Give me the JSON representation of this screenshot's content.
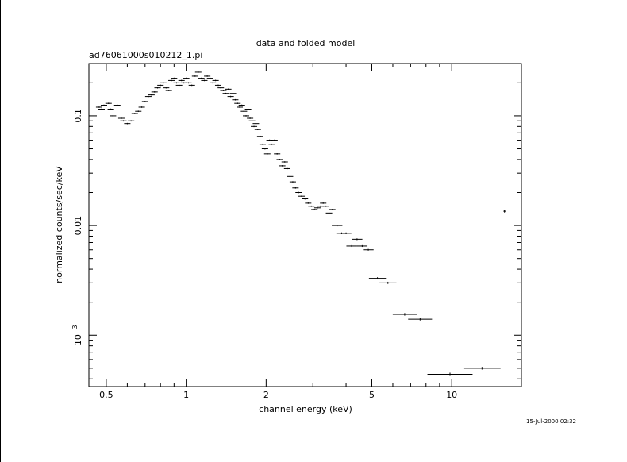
{
  "title": "data and folded model",
  "subtitle": "ad76061000s010212_1.pi",
  "timestamp": "15-Jul-2000 02:32",
  "chart_data": {
    "type": "scatter",
    "title": "data and folded model",
    "subtitle": "ad76061000s010212_1.pi",
    "xlabel": "channel energy (keV)",
    "ylabel": "normalized counts/sec/keV",
    "xscale": "log",
    "yscale": "log",
    "xlim": [
      0.43,
      18.3
    ],
    "ylim": [
      0.00034,
      0.3
    ],
    "grid": false,
    "legend": "none",
    "x_ticks": [
      {
        "value": 0.5,
        "label": "0.5"
      },
      {
        "value": 1,
        "label": "1"
      },
      {
        "value": 2,
        "label": "2"
      },
      {
        "value": 5,
        "label": "5"
      },
      {
        "value": 10,
        "label": "10"
      }
    ],
    "y_ticks": [
      {
        "value": 0.1,
        "label": "0.1"
      },
      {
        "value": 0.01,
        "label": "0.01"
      },
      {
        "value": 0.001,
        "base": "10",
        "exponent": "−3"
      }
    ],
    "points": [
      [
        0.47,
        0.12,
        0.012,
        0.006
      ],
      [
        0.48,
        0.115,
        0.012,
        0.006
      ],
      [
        0.49,
        0.125,
        0.012,
        0.006
      ],
      [
        0.51,
        0.13,
        0.012,
        0.006
      ],
      [
        0.52,
        0.115,
        0.012,
        0.006
      ],
      [
        0.53,
        0.1,
        0.012,
        0.006
      ],
      [
        0.55,
        0.125,
        0.012,
        0.006
      ],
      [
        0.57,
        0.095,
        0.012,
        0.006
      ],
      [
        0.58,
        0.09,
        0.012,
        0.006
      ],
      [
        0.6,
        0.085,
        0.012,
        0.006
      ],
      [
        0.62,
        0.09,
        0.012,
        0.006
      ],
      [
        0.64,
        0.105,
        0.012,
        0.006
      ],
      [
        0.66,
        0.11,
        0.012,
        0.006
      ],
      [
        0.68,
        0.12,
        0.012,
        0.006
      ],
      [
        0.7,
        0.135,
        0.012,
        0.006
      ],
      [
        0.72,
        0.15,
        0.012,
        0.006
      ],
      [
        0.74,
        0.155,
        0.012,
        0.006
      ],
      [
        0.76,
        0.165,
        0.012,
        0.006
      ],
      [
        0.78,
        0.18,
        0.012,
        0.006
      ],
      [
        0.8,
        0.19,
        0.012,
        0.006
      ],
      [
        0.82,
        0.2,
        0.012,
        0.006
      ],
      [
        0.84,
        0.18,
        0.012,
        0.006
      ],
      [
        0.86,
        0.17,
        0.012,
        0.006
      ],
      [
        0.88,
        0.21,
        0.012,
        0.006
      ],
      [
        0.9,
        0.22,
        0.012,
        0.006
      ],
      [
        0.92,
        0.2,
        0.012,
        0.006
      ],
      [
        0.94,
        0.19,
        0.012,
        0.006
      ],
      [
        0.96,
        0.21,
        0.012,
        0.006
      ],
      [
        0.98,
        0.2,
        0.012,
        0.006
      ],
      [
        1.0,
        0.22,
        0.012,
        0.006
      ],
      [
        1.02,
        0.2,
        0.012,
        0.006
      ],
      [
        1.05,
        0.19,
        0.012,
        0.006
      ],
      [
        1.08,
        0.23,
        0.012,
        0.006
      ],
      [
        1.11,
        0.25,
        0.012,
        0.006
      ],
      [
        1.14,
        0.22,
        0.012,
        0.006
      ],
      [
        1.17,
        0.21,
        0.012,
        0.006
      ],
      [
        1.2,
        0.23,
        0.012,
        0.006
      ],
      [
        1.23,
        0.22,
        0.012,
        0.006
      ],
      [
        1.26,
        0.2,
        0.012,
        0.006
      ],
      [
        1.29,
        0.21,
        0.012,
        0.006
      ],
      [
        1.32,
        0.19,
        0.012,
        0.006
      ],
      [
        1.35,
        0.18,
        0.012,
        0.006
      ],
      [
        1.38,
        0.17,
        0.012,
        0.006
      ],
      [
        1.41,
        0.16,
        0.012,
        0.006
      ],
      [
        1.44,
        0.175,
        0.012,
        0.006
      ],
      [
        1.47,
        0.15,
        0.012,
        0.006
      ],
      [
        1.5,
        0.16,
        0.012,
        0.006
      ],
      [
        1.53,
        0.14,
        0.012,
        0.006
      ],
      [
        1.56,
        0.13,
        0.012,
        0.006
      ],
      [
        1.59,
        0.12,
        0.012,
        0.006
      ],
      [
        1.62,
        0.125,
        0.012,
        0.006
      ],
      [
        1.65,
        0.11,
        0.012,
        0.006
      ],
      [
        1.68,
        0.1,
        0.012,
        0.006
      ],
      [
        1.71,
        0.115,
        0.012,
        0.006
      ],
      [
        1.74,
        0.095,
        0.012,
        0.006
      ],
      [
        1.77,
        0.09,
        0.012,
        0.006
      ],
      [
        1.8,
        0.08,
        0.012,
        0.006
      ],
      [
        1.83,
        0.085,
        0.012,
        0.006
      ],
      [
        1.86,
        0.075,
        0.012,
        0.006
      ],
      [
        1.9,
        0.065,
        0.012,
        0.006
      ],
      [
        1.94,
        0.055,
        0.012,
        0.006
      ],
      [
        1.98,
        0.05,
        0.012,
        0.006
      ],
      [
        2.02,
        0.045,
        0.012,
        0.006
      ],
      [
        2.06,
        0.06,
        0.012,
        0.006
      ],
      [
        2.1,
        0.055,
        0.012,
        0.006
      ],
      [
        2.15,
        0.06,
        0.012,
        0.006
      ],
      [
        2.2,
        0.045,
        0.012,
        0.006
      ],
      [
        2.25,
        0.04,
        0.012,
        0.006
      ],
      [
        2.3,
        0.035,
        0.012,
        0.006
      ],
      [
        2.35,
        0.038,
        0.012,
        0.006
      ],
      [
        2.4,
        0.033,
        0.012,
        0.006
      ],
      [
        2.46,
        0.028,
        0.012,
        0.006
      ],
      [
        2.52,
        0.025,
        0.012,
        0.006
      ],
      [
        2.58,
        0.022,
        0.012,
        0.006
      ],
      [
        2.65,
        0.02,
        0.012,
        0.006
      ],
      [
        2.72,
        0.0185,
        0.012,
        0.006
      ],
      [
        2.8,
        0.0175,
        0.012,
        0.006
      ],
      [
        2.88,
        0.016,
        0.012,
        0.006
      ],
      [
        2.96,
        0.015,
        0.012,
        0.006
      ],
      [
        3.04,
        0.014,
        0.012,
        0.006
      ],
      [
        3.12,
        0.0145,
        0.012,
        0.006
      ],
      [
        3.2,
        0.015,
        0.012,
        0.006
      ],
      [
        3.28,
        0.016,
        0.012,
        0.006
      ],
      [
        3.36,
        0.015,
        0.012,
        0.006
      ],
      [
        3.45,
        0.013,
        0.012,
        0.006
      ],
      [
        3.55,
        0.014,
        0.012,
        0.006
      ],
      [
        3.7,
        0.01,
        0.02,
        0.008
      ],
      [
        3.85,
        0.0085,
        0.02,
        0.008
      ],
      [
        4.0,
        0.0085,
        0.02,
        0.008
      ],
      [
        4.2,
        0.0065,
        0.02,
        0.008
      ],
      [
        4.4,
        0.0075,
        0.02,
        0.008
      ],
      [
        4.6,
        0.0065,
        0.02,
        0.008
      ],
      [
        4.85,
        0.006,
        0.02,
        0.008
      ],
      [
        5.25,
        0.0033,
        0.032,
        0.01
      ],
      [
        5.75,
        0.003,
        0.032,
        0.01
      ],
      [
        6.65,
        0.00155,
        0.045,
        0.012
      ],
      [
        7.6,
        0.0014,
        0.045,
        0.012
      ],
      [
        9.85,
        0.00044,
        0.085,
        0.015
      ],
      [
        13.0,
        0.0005,
        0.07,
        0.012
      ],
      [
        15.8,
        0.0135,
        0.004,
        0.012
      ]
    ]
  }
}
